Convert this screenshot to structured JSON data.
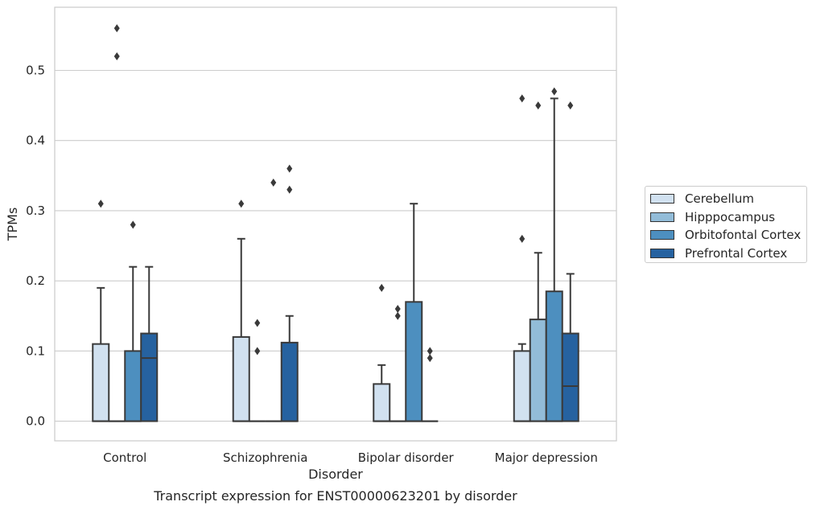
{
  "chart_data": {
    "type": "box",
    "xlabel": "Disorder",
    "ylabel": "TPMs",
    "caption": "Transcript expression for ENST00000623201 by disorder",
    "ylim": [
      -0.028,
      0.59
    ],
    "yticks": [
      0.0,
      0.1,
      0.2,
      0.3,
      0.4,
      0.5
    ],
    "ytick_labels": [
      "0.0",
      "0.1",
      "0.2",
      "0.3",
      "0.4",
      "0.5"
    ],
    "grid": "horizontal",
    "legend_position": "right",
    "categories": [
      "Control",
      "Schizophrenia",
      "Bipolar disorder",
      "Major depression"
    ],
    "series": [
      {
        "name": "Cerebellum",
        "color": "#d1e1f0",
        "boxes": [
          {
            "q1": 0.0,
            "median": 0.0,
            "q3": 0.11,
            "whisker_low": 0.0,
            "whisker_high": 0.19,
            "outliers": [
              0.31
            ]
          },
          {
            "q1": 0.0,
            "median": 0.0,
            "q3": 0.12,
            "whisker_low": 0.0,
            "whisker_high": 0.26,
            "outliers": [
              0.31
            ]
          },
          {
            "q1": 0.0,
            "median": 0.0,
            "q3": 0.053,
            "whisker_low": 0.0,
            "whisker_high": 0.08,
            "outliers": [
              0.19
            ]
          },
          {
            "q1": 0.0,
            "median": 0.0,
            "q3": 0.1,
            "whisker_low": 0.0,
            "whisker_high": 0.11,
            "outliers": [
              0.26,
              0.46
            ]
          }
        ]
      },
      {
        "name": "Hipppocampus",
        "color": "#92bcd8",
        "boxes": [
          {
            "q1": 0.0,
            "median": 0.0,
            "q3": 0.0,
            "whisker_low": 0.0,
            "whisker_high": 0.0,
            "outliers": [
              0.52,
              0.56
            ]
          },
          {
            "q1": 0.0,
            "median": 0.0,
            "q3": 0.0,
            "whisker_low": 0.0,
            "whisker_high": 0.0,
            "outliers": [
              0.1,
              0.14
            ]
          },
          {
            "q1": 0.0,
            "median": 0.0,
            "q3": 0.0,
            "whisker_low": 0.0,
            "whisker_high": 0.0,
            "outliers": [
              0.15,
              0.16
            ]
          },
          {
            "q1": 0.0,
            "median": 0.0,
            "q3": 0.145,
            "whisker_low": 0.0,
            "whisker_high": 0.24,
            "outliers": [
              0.45
            ]
          }
        ]
      },
      {
        "name": "Orbitofontal Cortex",
        "color": "#4d8fbf",
        "boxes": [
          {
            "q1": 0.0,
            "median": 0.0,
            "q3": 0.1,
            "whisker_low": 0.0,
            "whisker_high": 0.22,
            "outliers": [
              0.28
            ]
          },
          {
            "q1": 0.0,
            "median": 0.0,
            "q3": 0.0,
            "whisker_low": 0.0,
            "whisker_high": 0.0,
            "outliers": [
              0.34
            ]
          },
          {
            "q1": 0.0,
            "median": 0.0,
            "q3": 0.17,
            "whisker_low": 0.0,
            "whisker_high": 0.31,
            "outliers": []
          },
          {
            "q1": 0.0,
            "median": 0.0,
            "q3": 0.185,
            "whisker_low": 0.0,
            "whisker_high": 0.46,
            "outliers": [
              0.47
            ]
          }
        ]
      },
      {
        "name": "Prefrontal Cortex",
        "color": "#2662a0",
        "boxes": [
          {
            "q1": 0.0,
            "median": 0.09,
            "q3": 0.125,
            "whisker_low": 0.0,
            "whisker_high": 0.22,
            "outliers": []
          },
          {
            "q1": 0.0,
            "median": 0.0,
            "q3": 0.112,
            "whisker_low": 0.0,
            "whisker_high": 0.15,
            "outliers": [
              0.33,
              0.36
            ]
          },
          {
            "q1": 0.0,
            "median": 0.0,
            "q3": 0.0,
            "whisker_low": 0.0,
            "whisker_high": 0.0,
            "outliers": [
              0.09,
              0.1
            ]
          },
          {
            "q1": 0.0,
            "median": 0.05,
            "q3": 0.125,
            "whisker_low": 0.0,
            "whisker_high": 0.21,
            "outliers": [
              0.45
            ]
          }
        ]
      }
    ]
  }
}
